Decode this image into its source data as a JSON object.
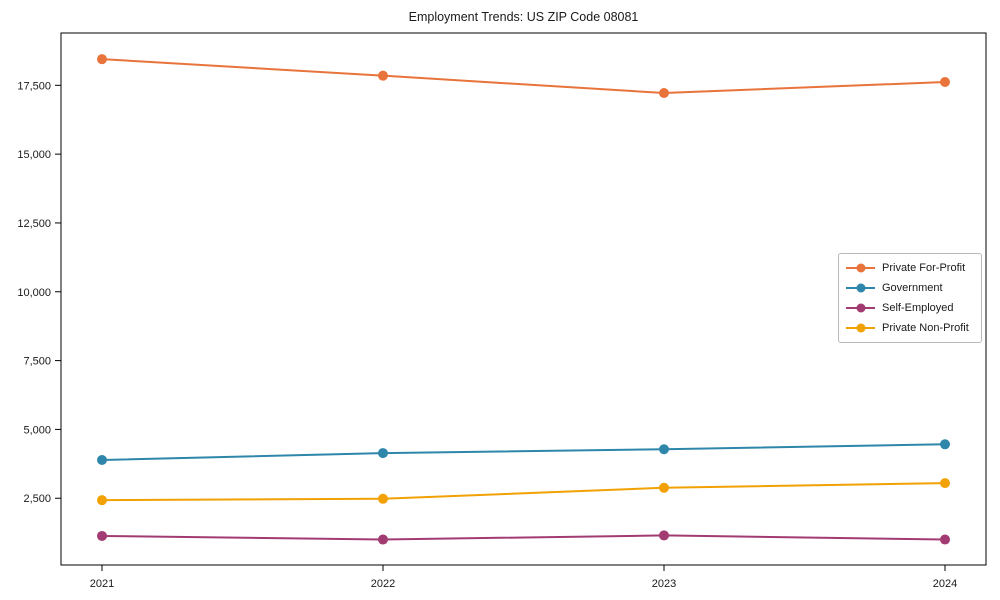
{
  "title": "Employment Trends: US ZIP Code 08081",
  "chart_data": {
    "type": "line",
    "title": "Employment Trends: US ZIP Code 08081",
    "x_categories": [
      "2021",
      "2022",
      "2023",
      "2024"
    ],
    "series": [
      {
        "name": "Private For-Profit",
        "color": "#E8743B",
        "values": [
          18450,
          17850,
          17220,
          17620
        ]
      },
      {
        "name": "Government",
        "color": "#2E86AB",
        "values": [
          3890,
          4140,
          4280,
          4460
        ]
      },
      {
        "name": "Self-Employed",
        "color": "#A23B72",
        "values": [
          1130,
          1000,
          1150,
          1000
        ]
      },
      {
        "name": "Private Non-Profit",
        "color": "#F2A104",
        "values": [
          2430,
          2480,
          2880,
          3050
        ]
      }
    ],
    "xlabel": "",
    "ylabel": "",
    "y_ticks": [
      2500,
      5000,
      7500,
      10000,
      12500,
      15000,
      17500
    ],
    "y_tick_labels": [
      "2,500",
      "5,000",
      "7,500",
      "10,000",
      "12,500",
      "15,000",
      "17,500"
    ],
    "ylim": [
      75,
      19400
    ],
    "grid": false,
    "legend_position": "center-right",
    "marker": "circle",
    "frame_color": "#000000"
  }
}
